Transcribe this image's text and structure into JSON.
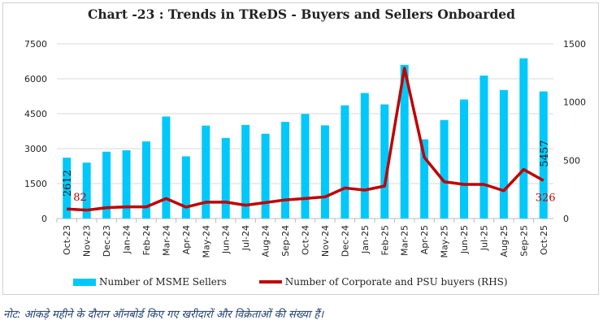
{
  "chart_data": {
    "type": "bar+line",
    "title": "Chart -23 : Trends in TReDS - Buyers and Sellers Onboarded",
    "categories": [
      "Oct-23",
      "Nov-23",
      "Dec-23",
      "Jan-24",
      "Feb-24",
      "Mar-24",
      "Apr-24",
      "May-24",
      "Jun-24",
      "Jul-24",
      "Aug-24",
      "Sep-24",
      "Oct-24",
      "Nov-24",
      "Dec-24",
      "Jan-25",
      "Feb-25",
      "Mar-25",
      "Apr-25",
      "May-25",
      "Jun-25",
      "Jul-25",
      "Aug-25",
      "Sep-25",
      "Oct-25"
    ],
    "series": [
      {
        "name": "Number of MSME Sellers",
        "type": "bar",
        "axis": "left",
        "color": "#00c8fa",
        "values": [
          2612,
          2400,
          2870,
          2930,
          3310,
          4380,
          2670,
          3990,
          3460,
          4020,
          3640,
          4150,
          4490,
          4000,
          4860,
          5390,
          4900,
          6600,
          3400,
          4230,
          5110,
          6140,
          5520,
          6880,
          5457
        ]
      },
      {
        "name": "Number of Corporate and PSU buyers (RHS)",
        "type": "line",
        "axis": "right",
        "color": "#c00000",
        "values": [
          82,
          72,
          93,
          100,
          100,
          172,
          98,
          140,
          141,
          114,
          137,
          160,
          172,
          186,
          262,
          244,
          279,
          1291,
          525,
          316,
          293,
          293,
          239,
          421,
          326
        ]
      }
    ],
    "y_left": {
      "ylim": [
        0,
        7500
      ],
      "ticks": [
        "0",
        "1500",
        "3000",
        "4500",
        "6000",
        "7500"
      ]
    },
    "y_right": {
      "ylim": [
        0,
        1500
      ],
      "ticks": [
        "0",
        "500",
        "1000",
        "1500"
      ]
    },
    "data_labels": {
      "first_bar": "2612",
      "first_line": "82",
      "last_bar": "5457",
      "last_line": "326"
    },
    "grid": true,
    "legend": "bottom"
  },
  "note": "नोट: आंकड़े महीने के दौरान ऑनबोर्ड किए गए खरीदारों और विक्रेताओं की संख्या हैं।"
}
